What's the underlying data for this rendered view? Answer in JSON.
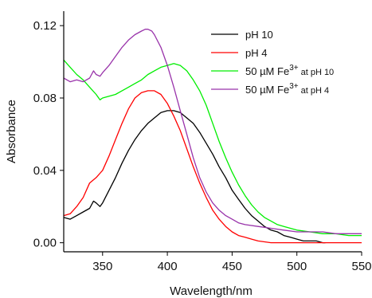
{
  "chart_data": {
    "type": "line",
    "xlabel": "Wavelength/nm",
    "ylabel": "Absorbance",
    "xlim": [
      320,
      550
    ],
    "ylim": [
      -0.005,
      0.128
    ],
    "xticks": [
      350,
      400,
      450,
      500,
      550
    ],
    "yticks": [
      0.0,
      0.04,
      0.08,
      0.12
    ],
    "xtick_labels": [
      "350",
      "400",
      "450",
      "500",
      "550"
    ],
    "ytick_labels": [
      "0.00",
      "0.04",
      "0.08",
      "0.12"
    ],
    "grid": false,
    "legend_position": "top-right",
    "series": [
      {
        "label_main": "pH 10",
        "label_sup": "",
        "label_tail": "",
        "color": "#000000",
        "x": [
          320,
          325,
          330,
          335,
          340,
          343,
          345,
          348,
          350,
          355,
          360,
          365,
          370,
          375,
          380,
          385,
          390,
          395,
          400,
          405,
          410,
          415,
          420,
          425,
          430,
          435,
          440,
          445,
          450,
          455,
          460,
          465,
          470,
          475,
          480,
          485,
          490,
          495,
          500,
          505,
          510,
          515,
          520,
          522
        ],
        "y": [
          0.014,
          0.013,
          0.015,
          0.017,
          0.019,
          0.023,
          0.022,
          0.02,
          0.022,
          0.029,
          0.036,
          0.044,
          0.051,
          0.057,
          0.062,
          0.066,
          0.069,
          0.072,
          0.073,
          0.073,
          0.072,
          0.069,
          0.066,
          0.061,
          0.055,
          0.049,
          0.042,
          0.036,
          0.029,
          0.024,
          0.019,
          0.015,
          0.012,
          0.009,
          0.007,
          0.006,
          0.004,
          0.003,
          0.002,
          0.001,
          0.001,
          0.001,
          0.0,
          0.0
        ]
      },
      {
        "label_main": "pH 4",
        "label_sup": "",
        "label_tail": "",
        "color": "#ff0000",
        "x": [
          320,
          325,
          330,
          335,
          340,
          345,
          350,
          355,
          360,
          365,
          370,
          375,
          380,
          385,
          390,
          395,
          400,
          405,
          410,
          415,
          420,
          425,
          430,
          435,
          440,
          445,
          450,
          455,
          460,
          465,
          470,
          480,
          490,
          500,
          510,
          520,
          530,
          540,
          550
        ],
        "y": [
          0.015,
          0.016,
          0.02,
          0.025,
          0.033,
          0.036,
          0.04,
          0.048,
          0.057,
          0.066,
          0.074,
          0.08,
          0.083,
          0.084,
          0.084,
          0.082,
          0.077,
          0.07,
          0.062,
          0.052,
          0.042,
          0.033,
          0.025,
          0.018,
          0.013,
          0.009,
          0.006,
          0.004,
          0.003,
          0.002,
          0.001,
          0.0,
          0.0,
          0.0,
          0.0,
          0.0,
          0.0,
          0.0,
          0.0
        ]
      },
      {
        "label_main": "50 µM Fe",
        "label_sup": "3+",
        "label_tail": "at pH 10",
        "color": "#00ee00",
        "x": [
          320,
          325,
          330,
          335,
          340,
          345,
          348,
          350,
          355,
          360,
          365,
          370,
          375,
          380,
          385,
          390,
          395,
          400,
          405,
          410,
          415,
          420,
          425,
          430,
          435,
          440,
          445,
          450,
          455,
          460,
          465,
          470,
          475,
          480,
          485,
          490,
          500,
          510,
          520,
          530,
          540,
          550
        ],
        "y": [
          0.101,
          0.097,
          0.093,
          0.09,
          0.086,
          0.082,
          0.079,
          0.08,
          0.081,
          0.082,
          0.084,
          0.086,
          0.088,
          0.09,
          0.093,
          0.095,
          0.097,
          0.098,
          0.099,
          0.098,
          0.095,
          0.09,
          0.084,
          0.076,
          0.066,
          0.056,
          0.047,
          0.039,
          0.032,
          0.026,
          0.021,
          0.017,
          0.014,
          0.012,
          0.01,
          0.009,
          0.007,
          0.006,
          0.005,
          0.005,
          0.004,
          0.004
        ]
      },
      {
        "label_main": "50 µM Fe",
        "label_sup": "3+",
        "label_tail": "at pH 4",
        "color": "#9933aa",
        "x": [
          320,
          325,
          330,
          335,
          340,
          343,
          345,
          348,
          350,
          355,
          360,
          365,
          370,
          375,
          380,
          383,
          385,
          388,
          390,
          395,
          400,
          405,
          410,
          415,
          420,
          425,
          430,
          435,
          440,
          445,
          450,
          455,
          460,
          470,
          480,
          490,
          500,
          510,
          520,
          530,
          540,
          550
        ],
        "y": [
          0.091,
          0.089,
          0.09,
          0.089,
          0.091,
          0.095,
          0.093,
          0.092,
          0.094,
          0.098,
          0.103,
          0.108,
          0.112,
          0.115,
          0.117,
          0.118,
          0.118,
          0.117,
          0.115,
          0.108,
          0.098,
          0.086,
          0.073,
          0.06,
          0.047,
          0.036,
          0.028,
          0.022,
          0.018,
          0.015,
          0.013,
          0.011,
          0.01,
          0.009,
          0.008,
          0.007,
          0.006,
          0.006,
          0.006,
          0.005,
          0.005,
          0.005
        ]
      }
    ]
  }
}
